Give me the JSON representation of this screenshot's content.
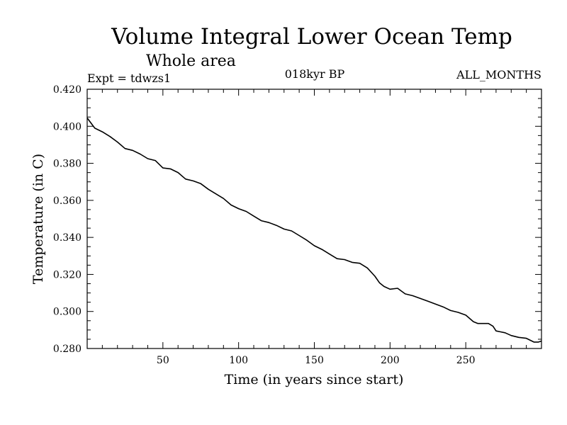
{
  "chart_data": {
    "type": "line",
    "title": "Volume Integral Lower Ocean Temp",
    "subtitle": "Whole area",
    "experiment_label": "Expt = tdwzs1",
    "period_label": "018kyr BP",
    "months_label": "ALL_MONTHS",
    "xlabel": "Time (in years since start)",
    "ylabel": "Temperature (in C)",
    "xlim": [
      0,
      300
    ],
    "ylim": [
      0.28,
      0.42
    ],
    "x_ticks": [
      50,
      100,
      150,
      200,
      250
    ],
    "x_tick_labels": [
      "50",
      "100",
      "150",
      "200",
      "250"
    ],
    "y_ticks": [
      0.28,
      0.3,
      0.32,
      0.34,
      0.36,
      0.38,
      0.4,
      0.42
    ],
    "y_tick_labels": [
      "0.280",
      "0.300",
      "0.320",
      "0.340",
      "0.360",
      "0.380",
      "0.400",
      "0.420"
    ],
    "grid": false,
    "series": [
      {
        "name": "Temperature",
        "color": "#000000",
        "x": [
          0,
          5,
          10,
          15,
          20,
          25,
          30,
          35,
          40,
          45,
          50,
          55,
          60,
          65,
          70,
          75,
          80,
          85,
          90,
          95,
          100,
          105,
          110,
          115,
          120,
          125,
          130,
          135,
          140,
          145,
          150,
          155,
          160,
          165,
          170,
          175,
          180,
          185,
          190,
          193,
          196,
          200,
          205,
          210,
          215,
          220,
          225,
          230,
          235,
          240,
          245,
          250,
          255,
          258,
          261,
          265,
          268,
          270,
          273,
          276,
          280,
          285,
          290,
          295,
          298,
          300
        ],
        "values": [
          0.4045,
          0.399,
          0.397,
          0.3945,
          0.3915,
          0.388,
          0.387,
          0.385,
          0.3825,
          0.3815,
          0.3775,
          0.377,
          0.375,
          0.3715,
          0.3705,
          0.369,
          0.366,
          0.3635,
          0.361,
          0.3575,
          0.3555,
          0.354,
          0.3515,
          0.349,
          0.348,
          0.3465,
          0.3445,
          0.3435,
          0.341,
          0.3385,
          0.3355,
          0.3335,
          0.331,
          0.3285,
          0.328,
          0.3265,
          0.326,
          0.3235,
          0.319,
          0.3155,
          0.3135,
          0.312,
          0.3125,
          0.3095,
          0.3085,
          0.307,
          0.3055,
          0.304,
          0.3025,
          0.3005,
          0.2995,
          0.298,
          0.2945,
          0.2935,
          0.2935,
          0.2935,
          0.292,
          0.2895,
          0.289,
          0.2885,
          0.287,
          0.286,
          0.2855,
          0.2835,
          0.2835,
          0.284
        ]
      }
    ]
  }
}
